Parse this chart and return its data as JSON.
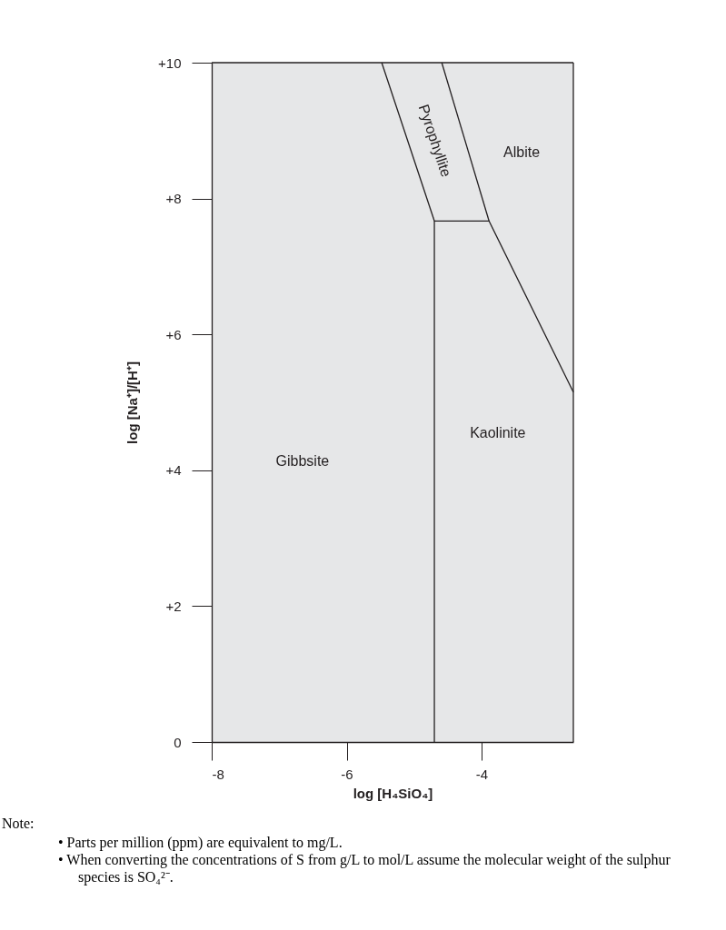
{
  "chart_data": {
    "type": "line",
    "xlabel": "log [H₄SiO₄]",
    "ylabel": "log [Na⁺]/[H⁺]",
    "xlim": [
      -8,
      -2.64
    ],
    "ylim": [
      0,
      10
    ],
    "xticks": [
      -8,
      -6,
      -4
    ],
    "yticks": [
      {
        "value": 0,
        "label": "0"
      },
      {
        "value": 2,
        "label": "+2"
      },
      {
        "value": 4,
        "label": "+4"
      },
      {
        "value": 6,
        "label": "+6"
      },
      {
        "value": 8,
        "label": "+8"
      },
      {
        "value": 10,
        "label": "+10"
      }
    ],
    "grid": false,
    "marker": "none",
    "line_style": "solid",
    "legend": false,
    "series": [
      {
        "color": "#231f20",
        "x": [
          -5.48,
          -4.7,
          -3.89,
          -2.64
        ],
        "values": [
          10,
          7.67,
          7.67,
          5.15
        ]
      },
      {
        "color": "#231f20",
        "x": [
          -4.59,
          -3.89
        ],
        "values": [
          10,
          7.67
        ]
      },
      {
        "color": "#231f20",
        "x": [
          -4.7,
          -4.7
        ],
        "values": [
          7.67,
          0
        ]
      }
    ],
    "annotations": [
      "Gibbsite",
      "Pyrophyllite",
      "Albite",
      "Kaolinite",
      "Note:",
      "• Parts per million (ppm) are equivalent to mg/L.",
      "• When converting the concentrations of S from g/L to mol/L assume the molecular weight of the sulphur species is SO₄²⁻."
    ]
  }
}
